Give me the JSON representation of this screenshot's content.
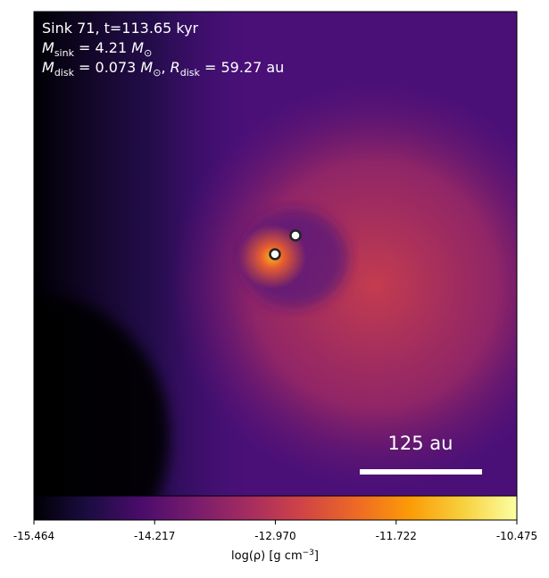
{
  "chart_data": {
    "type": "image",
    "annotations": [
      [
        "Sink 71, t=113.65 kyr"
      ],
      [
        "M",
        "sink",
        " = 4.21 ",
        "M",
        "⊙"
      ],
      [
        "M",
        "disk",
        " = 0.073 ",
        "M",
        "⊙",
        ", ",
        "R",
        "disk",
        " = 59.27 au"
      ]
    ],
    "scale_bar_label": "125 au",
    "colorbar": {
      "cmap": "inferno",
      "clim": [
        -15.464,
        -10.475
      ],
      "ticks": [
        -15.464,
        -14.217,
        {
          "value": -12.97,
          "label": "-12.970"
        },
        -11.722,
        -10.475
      ],
      "label": [
        "log(ρ) [g cm",
        "−3",
        "]"
      ]
    }
  }
}
